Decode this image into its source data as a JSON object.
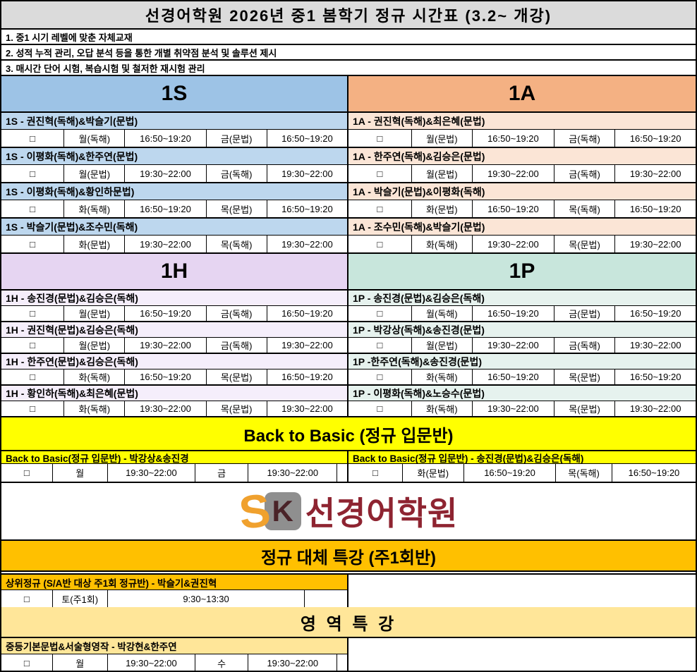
{
  "title": "선경어학원 2026년 중1 봄학기 정규 시간표 (3.2~ 개강)",
  "notes": [
    "1. 중1 시기 레벨에 맞춘 자체교재",
    "2. 성적 누적 관리, 오답 분석 등을 통한 개별 취약점 분석 및 솔루션 제시",
    "3. 매시간 단어 시험, 복습시험 및 철저한 재시험 관리"
  ],
  "levels": [
    {
      "label": "1S",
      "classes": [
        {
          "name": "1S - 권진혁(독해)&박슬기(문법)",
          "cells": [
            "□",
            "월(독해)",
            "16:50~19:20",
            "금(문법)",
            "16:50~19:20"
          ]
        },
        {
          "name": "1S - 이평화(독해)&한주연(문법)",
          "cells": [
            "□",
            "월(문법)",
            "19:30~22:00",
            "금(독해)",
            "19:30~22:00"
          ]
        },
        {
          "name": "1S - 이평화(독해)&황인하문법)",
          "cells": [
            "□",
            "화(독해)",
            "16:50~19:20",
            "목(문법)",
            "16:50~19:20"
          ]
        },
        {
          "name": "1S - 박슬기(문법)&조수민(독해)",
          "cells": [
            "□",
            "화(문법)",
            "19:30~22:00",
            "목(독해)",
            "19:30~22:00"
          ]
        }
      ]
    },
    {
      "label": "1A",
      "classes": [
        {
          "name": "1A - 권진혁(독해)&최은혜(문법)",
          "cells": [
            "□",
            "월(문법)",
            "16:50~19:20",
            "금(독해)",
            "16:50~19:20"
          ]
        },
        {
          "name": "1A - 한주연(독해)&김승은(문법)",
          "cells": [
            "□",
            "월(문법)",
            "19:30~22:00",
            "금(독해)",
            "19:30~22:00"
          ]
        },
        {
          "name": "1A - 박슬기(문법)&이평화(독해)",
          "cells": [
            "□",
            "화(문법)",
            "16:50~19:20",
            "목(독해)",
            "16:50~19:20"
          ]
        },
        {
          "name": "1A - 조수민(독해)&박슬기(문법)",
          "cells": [
            "□",
            "화(독해)",
            "19:30~22:00",
            "목(문법)",
            "19:30~22:00"
          ]
        }
      ]
    },
    {
      "label": "1H",
      "classes": [
        {
          "name": "1H - 송진경(문법)&김승은(독해)",
          "cells": [
            "□",
            "월(문법)",
            "16:50~19:20",
            "금(독해)",
            "16:50~19:20"
          ]
        },
        {
          "name": "1H - 권진혁(문법)&김승은(독해)",
          "cells": [
            "□",
            "월(문법)",
            "19:30~22:00",
            "금(독해)",
            "19:30~22:00"
          ]
        },
        {
          "name": "1H - 한주연(문법)&김승은(독해)",
          "cells": [
            "□",
            "화(독해)",
            "16:50~19:20",
            "목(문법)",
            "16:50~19:20"
          ]
        },
        {
          "name": "1H - 황인하(독해)&최은혜(문법)",
          "cells": [
            "□",
            "화(독해)",
            "19:30~22:00",
            "목(문법)",
            "19:30~22:00"
          ]
        }
      ]
    },
    {
      "label": "1P",
      "classes": [
        {
          "name": "1P - 송진경(문법)&김승은(독해)",
          "cells": [
            "□",
            "월(독해)",
            "16:50~19:20",
            "금(문법)",
            "16:50~19:20"
          ]
        },
        {
          "name": "1P - 박강상(독해)&송진경(문법)",
          "cells": [
            "□",
            "월(문법)",
            "19:30~22:00",
            "금(독해)",
            "19:30~22:00"
          ]
        },
        {
          "name": "1P -한주연(독해)&송진경(문법)",
          "cells": [
            "□",
            "화(독해)",
            "16:50~19:20",
            "목(문법)",
            "16:50~19:20"
          ]
        },
        {
          "name": "1P - 이평화(독해)&노승수(문법)",
          "cells": [
            "□",
            "화(독해)",
            "19:30~22:00",
            "목(문법)",
            "19:30~22:00"
          ]
        }
      ]
    }
  ],
  "back_to_basic": {
    "title": "Back to Basic (정규 입문반)",
    "left": {
      "name": "Back to Basic(정규 입문반) - 박강상&송진경",
      "cells": [
        "□",
        "월",
        "19:30~22:00",
        "금",
        "19:30~22:00"
      ]
    },
    "right": {
      "name": "Back to Basic(정규 입문반) - 송진경(문법)&김승은(독해)",
      "cells": [
        "□",
        "화(문법)",
        "16:50~19:20",
        "목(독해)",
        "16:50~19:20"
      ]
    }
  },
  "logo": {
    "mark_s": "S",
    "mark_k": "K",
    "name": "선경어학원"
  },
  "special_weekly": {
    "title": "정규 대체 특강 (주1회반)",
    "class": {
      "name": "상위정규 (S/A반 대상 주1회 정규반) - 박슬기&권진혁",
      "cells": [
        "□",
        "토(주1회)",
        "9:30~13:30"
      ]
    }
  },
  "special_area": {
    "title": "영 역 특 강",
    "class": {
      "name": "중등기본문법&서술형영작 - 박강현&한주연",
      "cells": [
        "□",
        "월",
        "19:30~22:00",
        "수",
        "19:30~22:00"
      ]
    }
  },
  "colors": {
    "title_bar": "#DBDBDB",
    "level_1s_header": "#9DC3E6",
    "level_1s_rows": "#BDD7EE",
    "level_1a_header": "#F4B183",
    "level_1a_rows": "#FBE5D6",
    "level_1h_header": "#E6D5F2",
    "level_1h_rows": "#F5EEFB",
    "level_1p_header": "#C8E6DC",
    "level_1p_rows": "#E6F2EE",
    "back_to_basic": "#FFFF00",
    "special_weekly": "#FFC000",
    "special_area": "#FFE699",
    "logo_orange": "#F0A12E",
    "logo_gray": "#8F8F8F",
    "logo_maroon": "#8E2431"
  }
}
